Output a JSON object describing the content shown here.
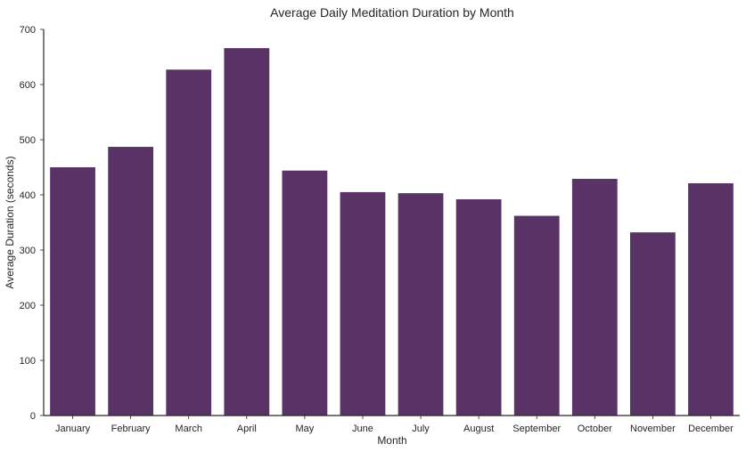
{
  "chart_data": {
    "type": "bar",
    "title": "Average Daily Meditation Duration by Month",
    "xlabel": "Month",
    "ylabel": "Average Duration (seconds)",
    "categories": [
      "January",
      "February",
      "March",
      "April",
      "May",
      "June",
      "July",
      "August",
      "September",
      "October",
      "November",
      "December"
    ],
    "values": [
      450,
      487,
      627,
      666,
      444,
      405,
      403,
      392,
      362,
      429,
      332,
      421
    ],
    "ylim": [
      0,
      700
    ],
    "yticks": [
      0,
      100,
      200,
      300,
      400,
      500,
      600,
      700
    ],
    "grid": false,
    "bar_color": "#5a3366",
    "axis_color": "#262626"
  }
}
